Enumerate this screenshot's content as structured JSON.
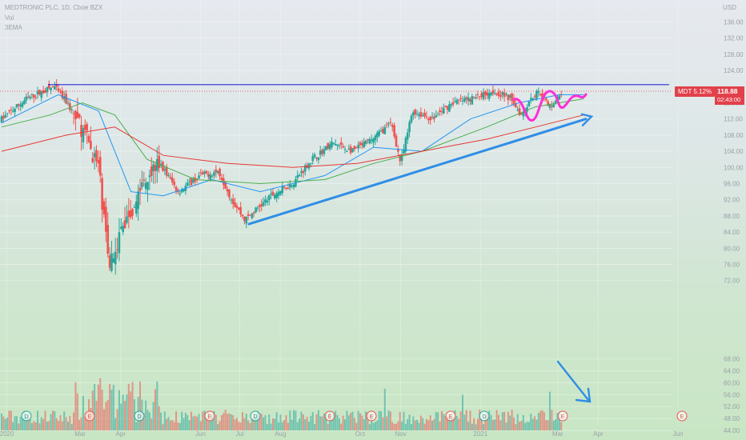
{
  "header": {
    "title": "MEDTRONIC PLC, 1D, Cboe BZX",
    "volume_label": "Vol",
    "ema_label": "3EMA"
  },
  "currency": "USD",
  "price_label": {
    "symbol_change": "MDT 5.12%",
    "last_price": "118.88",
    "countdown": "02:43:00"
  },
  "colors": {
    "up": "#26a69a",
    "down": "#ef5350",
    "ema_fast": "#2196f3",
    "ema_mid": "#4caf50",
    "ema_slow": "#e53935",
    "resistance": "#2b2bd6",
    "trendline": "#2f8ee6",
    "pattern": "#ff2fd6",
    "arrow": "#2f8ee6"
  },
  "chart_data": {
    "type": "candlestick",
    "y_axis": {
      "ticks": [
        "136.00",
        "132.00",
        "128.00",
        "124.00",
        "116.00",
        "112.00",
        "108.00",
        "104.00",
        "100.00",
        "96.00",
        "92.00",
        "88.00",
        "84.00",
        "80.00",
        "76.00",
        "72.00",
        "68.00",
        "64.00",
        "60.00",
        "56.00",
        "52.00",
        "48.00",
        "44.00"
      ]
    },
    "x_axis": {
      "labels": [
        "2020",
        "Mar",
        "Apr",
        "Jun",
        "Jul",
        "Aug",
        "Oct",
        "Nov",
        "2021",
        "Mar",
        "Apr",
        "Jun"
      ]
    },
    "price_path": [
      [
        "2020-01-01",
        112
      ],
      [
        "2020-01-20",
        117
      ],
      [
        "2020-02-10",
        120
      ],
      [
        "2020-02-20",
        116
      ],
      [
        "2020-03-05",
        108
      ],
      [
        "2020-03-15",
        100
      ],
      [
        "2020-03-23",
        76
      ],
      [
        "2020-04-01",
        84
      ],
      [
        "2020-04-10",
        90
      ],
      [
        "2020-04-20",
        98
      ],
      [
        "2020-05-01",
        101
      ],
      [
        "2020-05-15",
        94
      ],
      [
        "2020-06-01",
        98
      ],
      [
        "2020-06-15",
        99
      ],
      [
        "2020-06-25",
        92
      ],
      [
        "2020-07-05",
        87
      ],
      [
        "2020-07-15",
        90
      ],
      [
        "2020-07-25",
        93
      ],
      [
        "2020-08-10",
        96
      ],
      [
        "2020-08-25",
        102
      ],
      [
        "2020-09-10",
        106
      ],
      [
        "2020-09-25",
        104
      ],
      [
        "2020-10-10",
        107
      ],
      [
        "2020-10-25",
        111
      ],
      [
        "2020-11-01",
        101
      ],
      [
        "2020-11-10",
        114
      ],
      [
        "2020-11-25",
        112
      ],
      [
        "2020-12-10",
        116
      ],
      [
        "2020-12-25",
        117
      ],
      [
        "2021-01-10",
        119
      ],
      [
        "2021-01-25",
        117
      ],
      [
        "2021-02-01",
        113
      ],
      [
        "2021-02-08",
        117
      ],
      [
        "2021-02-15",
        119
      ],
      [
        "2021-02-22",
        115
      ],
      [
        "2021-03-01",
        117
      ],
      [
        "2021-03-05",
        118.88
      ]
    ],
    "moving_averages": [
      {
        "name": "EMA fast",
        "values": [
          [
            0,
            111
          ],
          [
            20,
            115
          ],
          [
            35,
            118
          ],
          [
            60,
            114
          ],
          [
            80,
            94
          ],
          [
            100,
            93
          ],
          [
            130,
            97
          ],
          [
            160,
            94
          ],
          [
            200,
            98
          ],
          [
            230,
            105
          ],
          [
            260,
            104
          ],
          [
            290,
            112
          ],
          [
            320,
            116
          ],
          [
            345,
            118
          ],
          [
            360,
            118
          ]
        ]
      },
      {
        "name": "EMA mid",
        "values": [
          [
            0,
            110
          ],
          [
            30,
            113
          ],
          [
            50,
            116
          ],
          [
            70,
            113
          ],
          [
            90,
            102
          ],
          [
            120,
            97
          ],
          [
            160,
            96
          ],
          [
            200,
            97
          ],
          [
            230,
            101
          ],
          [
            260,
            104
          ],
          [
            300,
            110
          ],
          [
            330,
            115
          ],
          [
            360,
            117
          ]
        ]
      },
      {
        "name": "EMA slow",
        "values": [
          [
            0,
            104
          ],
          [
            40,
            108
          ],
          [
            70,
            110
          ],
          [
            100,
            103
          ],
          [
            140,
            101
          ],
          [
            180,
            100
          ],
          [
            220,
            101
          ],
          [
            260,
            104
          ],
          [
            300,
            107
          ],
          [
            340,
            111
          ],
          [
            360,
            113
          ]
        ]
      }
    ],
    "volume_peaks": [
      {
        "date": "2020-03-13",
        "value": 66
      },
      {
        "date": "2020-03-20",
        "value": 62
      },
      {
        "date": "2020-10-20",
        "value": 58
      },
      {
        "date": "2020-12-18",
        "value": 56
      },
      {
        "date": "2021-02-23",
        "value": 57
      }
    ],
    "event_markers": [
      {
        "label": "D",
        "kind": "dividend"
      },
      {
        "label": "E",
        "kind": "earnings"
      },
      {
        "label": "D",
        "kind": "dividend"
      },
      {
        "label": "E",
        "kind": "earnings"
      },
      {
        "label": "D",
        "kind": "dividend"
      },
      {
        "label": "E",
        "kind": "earnings"
      },
      {
        "label": "E",
        "kind": "earnings"
      },
      {
        "label": "E",
        "kind": "earnings"
      },
      {
        "label": "D",
        "kind": "dividend"
      },
      {
        "label": "E",
        "kind": "earnings"
      },
      {
        "label": "E",
        "kind": "earnings"
      }
    ],
    "annotations": [
      {
        "kind": "horizontal_resistance",
        "level": 120.5
      },
      {
        "kind": "ascending_trendline",
        "from": [
          "2020-07-08",
          86
        ],
        "to": [
          "2021-03-15",
          112
        ]
      },
      {
        "kind": "pattern_w",
        "color": "pattern"
      },
      {
        "kind": "volume_down_arrow"
      }
    ]
  }
}
